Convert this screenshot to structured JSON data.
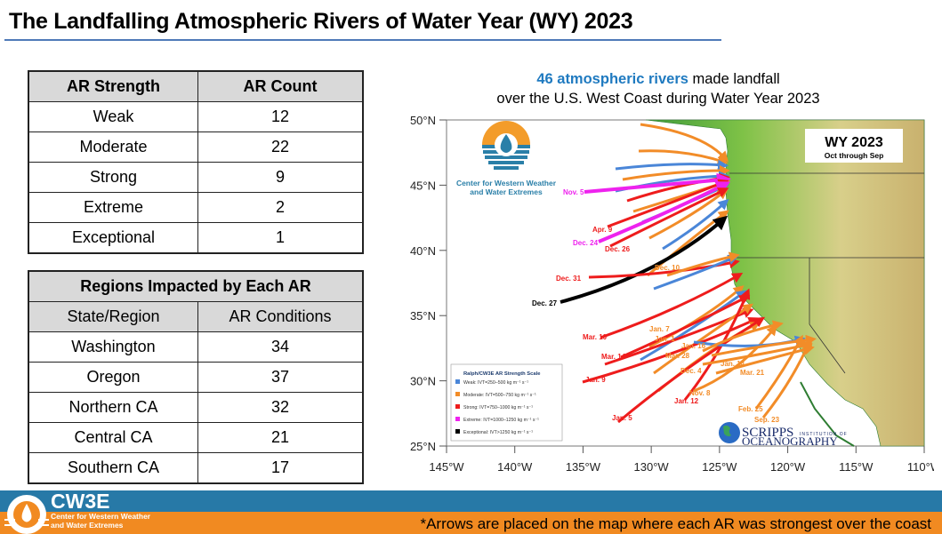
{
  "title": "The Landfalling Atmospheric Rivers of Water Year (WY) 2023",
  "strength_table": {
    "headers": [
      "AR Strength",
      "AR Count"
    ],
    "rows": [
      [
        "Weak",
        "12"
      ],
      [
        "Moderate",
        "22"
      ],
      [
        "Strong",
        "9"
      ],
      [
        "Extreme",
        "2"
      ],
      [
        "Exceptional",
        "1"
      ]
    ]
  },
  "regions_table": {
    "title": "Regions Impacted by Each AR",
    "headers": [
      "State/Region",
      "AR Conditions"
    ],
    "rows": [
      [
        "Washington",
        "34"
      ],
      [
        "Oregon",
        "37"
      ],
      [
        "Northern CA",
        "32"
      ],
      [
        "Central CA",
        "21"
      ],
      [
        "Southern CA",
        "17"
      ]
    ]
  },
  "map": {
    "caption_highlight": "46 atmospheric rivers",
    "caption_line1_rest": " made landfall",
    "caption_line2": "over the U.S. West Coast during Water Year 2023",
    "badge_title": "WY 2023",
    "badge_subtitle": "Oct through Sep",
    "logo_line1": "Center for Western Weather",
    "logo_line2": "and Water Extremes",
    "scripps_line1": "SCRIPPS",
    "scripps_inst": "INSTITUTION OF",
    "scripps_line2": "OCEANOGRAPHY",
    "lat_ticks": [
      "50°N",
      "45°N",
      "40°N",
      "35°N",
      "30°N",
      "25°N"
    ],
    "lon_ticks": [
      "145°W",
      "140°W",
      "135°W",
      "130°W",
      "125°W",
      "120°W",
      "115°W",
      "110°W"
    ],
    "lat_range": [
      25,
      50
    ],
    "lon_range": [
      -145,
      -110
    ],
    "legend": {
      "title": "Ralph/CW3E AR Strength Scale",
      "items": [
        {
          "label": "Weak: IVT=250–500 kg m⁻¹ s⁻¹",
          "color": "#4a86d8"
        },
        {
          "label": "Moderate: IVT=500–750 kg m⁻¹ s⁻¹",
          "color": "#f28c28"
        },
        {
          "label": "Strong: IVT=750–1000 kg m⁻¹ s⁻¹",
          "color": "#ee1c1c"
        },
        {
          "label": "Extreme: IVT=1000–1250 kg m⁻¹ s⁻¹",
          "color": "#ee22ee"
        },
        {
          "label": "Exceptional: IVT>1250 kg m⁻¹ s⁻¹",
          "color": "#000000"
        }
      ]
    },
    "labeled_ars": [
      {
        "date": "Nov. 5",
        "strength": "Extreme"
      },
      {
        "date": "Apr. 9",
        "strength": "Strong"
      },
      {
        "date": "Dec. 24",
        "strength": "Extreme"
      },
      {
        "date": "Dec. 26",
        "strength": "Strong"
      },
      {
        "date": "Dec. 10",
        "strength": "Moderate"
      },
      {
        "date": "Dec. 31",
        "strength": "Strong"
      },
      {
        "date": "Dec. 27",
        "strength": "Exceptional"
      },
      {
        "date": "Mar. 10",
        "strength": "Strong"
      },
      {
        "date": "Jan. 7",
        "strength": "Moderate"
      },
      {
        "date": "Jan. 1",
        "strength": "Moderate"
      },
      {
        "date": "Jan. 16",
        "strength": "Moderate"
      },
      {
        "date": "Mar. 14",
        "strength": "Strong"
      },
      {
        "date": "Mar. 28",
        "strength": "Moderate"
      },
      {
        "date": "Dec. 4",
        "strength": "Moderate"
      },
      {
        "date": "Jan. 14",
        "strength": "Moderate"
      },
      {
        "date": "Mar. 21",
        "strength": "Moderate"
      },
      {
        "date": "Jan. 9",
        "strength": "Strong"
      },
      {
        "date": "Nov. 8",
        "strength": "Moderate"
      },
      {
        "date": "Jan. 12",
        "strength": "Strong"
      },
      {
        "date": "Feb. 25",
        "strength": "Moderate"
      },
      {
        "date": "Sep. 23",
        "strength": "Moderate"
      },
      {
        "date": "Jan. 5",
        "strength": "Strong"
      }
    ]
  },
  "footer": {
    "org_short": "CW3E",
    "org_line1": "Center for Western Weather",
    "org_line2": "and Water Extremes",
    "note": "*Arrows are placed on the map where each AR was strongest over the coast"
  },
  "colors": {
    "accent_blue": "#1f7ac0",
    "footer_blue": "#2779a7",
    "footer_orange": "#f18a21"
  }
}
